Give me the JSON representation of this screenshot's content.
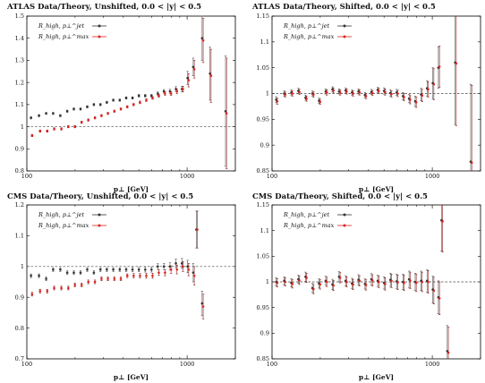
{
  "figure_colors": {
    "jet": "#333333",
    "max": "#e0231e",
    "errbar": "#8b1a1a",
    "ref": "#444444"
  },
  "chart_data": [
    {
      "type": "scatter",
      "title": "ATLAS Data/Theory, Unshifted, 0.0 < |y| < 0.5",
      "xlabel": "p⊥ [GeV]",
      "xscale": "log",
      "xlim": [
        100,
        2000
      ],
      "ylim": [
        0.8,
        1.5
      ],
      "yticks": [
        0.8,
        0.9,
        1.0,
        1.1,
        1.2,
        1.3,
        1.4,
        1.5
      ],
      "ytick_labels": [
        "0.8",
        "0.9",
        "1",
        "1.1",
        "1.2",
        "1.3",
        "1.4",
        "1.5"
      ],
      "xticks": [
        100,
        1000
      ],
      "xtick_labels": [
        "100",
        "1000"
      ],
      "reference_line": 1.0,
      "legend_position": "top-left",
      "legend_entries": [
        "R_high, p⊥^jet",
        "R_high, p⊥^max"
      ],
      "series": [
        {
          "name": "R_high, p⊥^jet",
          "color": "#333333",
          "x": [
            107,
            120,
            133,
            147,
            163,
            180,
            198,
            218,
            240,
            264,
            290,
            318,
            349,
            383,
            420,
            460,
            504,
            552,
            604,
            661,
            722,
            788,
            858,
            935,
            1015,
            1100,
            1250,
            1400,
            1750
          ],
          "y": [
            1.04,
            1.05,
            1.06,
            1.06,
            1.05,
            1.07,
            1.08,
            1.08,
            1.09,
            1.1,
            1.1,
            1.11,
            1.12,
            1.12,
            1.13,
            1.13,
            1.14,
            1.14,
            1.14,
            1.15,
            1.16,
            1.16,
            1.17,
            1.17,
            1.22,
            1.27,
            1.4,
            1.24,
            1.07
          ],
          "err": [
            0.005,
            0.005,
            0.005,
            0.005,
            0.005,
            0.005,
            0.005,
            0.005,
            0.005,
            0.005,
            0.005,
            0.005,
            0.005,
            0.005,
            0.005,
            0.005,
            0.006,
            0.006,
            0.006,
            0.007,
            0.008,
            0.009,
            0.011,
            0.013,
            0.03,
            0.04,
            0.1,
            0.12,
            0.25
          ]
        },
        {
          "name": "R_high, p⊥^max",
          "color": "#e0231e",
          "x": [
            107,
            120,
            133,
            147,
            163,
            180,
            198,
            218,
            240,
            264,
            290,
            318,
            349,
            383,
            420,
            460,
            504,
            552,
            604,
            661,
            722,
            788,
            858,
            935,
            1015,
            1100,
            1250,
            1400,
            1750
          ],
          "y": [
            0.96,
            0.98,
            0.98,
            0.99,
            0.99,
            1.0,
            1.0,
            1.02,
            1.03,
            1.04,
            1.05,
            1.06,
            1.07,
            1.08,
            1.09,
            1.1,
            1.11,
            1.12,
            1.13,
            1.14,
            1.15,
            1.15,
            1.16,
            1.17,
            1.21,
            1.26,
            1.39,
            1.23,
            1.06
          ],
          "err": [
            0.005,
            0.005,
            0.005,
            0.005,
            0.005,
            0.005,
            0.005,
            0.005,
            0.005,
            0.005,
            0.005,
            0.005,
            0.005,
            0.005,
            0.005,
            0.005,
            0.006,
            0.006,
            0.006,
            0.007,
            0.008,
            0.009,
            0.011,
            0.013,
            0.03,
            0.04,
            0.1,
            0.12,
            0.25
          ]
        }
      ]
    },
    {
      "type": "scatter",
      "title": "ATLAS Data/Theory, Shifted, 0.0 < |y| < 0.5",
      "xlabel": "p⊥ [GeV]",
      "xscale": "log",
      "xlim": [
        100,
        2000
      ],
      "ylim": [
        0.85,
        1.15
      ],
      "yticks": [
        0.85,
        0.9,
        0.95,
        1.0,
        1.05,
        1.1,
        1.15
      ],
      "ytick_labels": [
        "0.85",
        "0.9",
        "0.95",
        "1",
        "1.05",
        "1.1",
        "1.15"
      ],
      "xticks": [
        100,
        1000
      ],
      "xtick_labels": [
        "100",
        "1000"
      ],
      "reference_line": 1.0,
      "legend_position": "top-left",
      "legend_entries": [
        "R_high, p⊥^jet",
        "R_high, p⊥^max"
      ],
      "series": [
        {
          "name": "R_high, p⊥^jet",
          "color": "#333333",
          "x": [
            107,
            120,
            133,
            147,
            163,
            180,
            198,
            218,
            240,
            264,
            290,
            318,
            349,
            383,
            420,
            460,
            504,
            552,
            604,
            661,
            722,
            788,
            858,
            935,
            1015,
            1100,
            1400,
            1750
          ],
          "y": [
            0.988,
            1.0,
            1.002,
            1.005,
            0.992,
            1.0,
            0.986,
            1.004,
            1.008,
            1.004,
            1.006,
            1.002,
            1.004,
            0.997,
            1.003,
            1.007,
            1.005,
            1.001,
            1.002,
            0.995,
            0.99,
            0.985,
            0.998,
            1.01,
            1.02,
            1.05,
            1.06,
            0.868
          ],
          "err": [
            0.006,
            0.005,
            0.005,
            0.005,
            0.005,
            0.005,
            0.005,
            0.005,
            0.005,
            0.005,
            0.005,
            0.005,
            0.005,
            0.005,
            0.005,
            0.005,
            0.006,
            0.006,
            0.006,
            0.007,
            0.008,
            0.01,
            0.012,
            0.015,
            0.03,
            0.04,
            0.12,
            0.15
          ]
        },
        {
          "name": "R_high, p⊥^max",
          "color": "#e0231e",
          "x": [
            107,
            120,
            133,
            147,
            163,
            180,
            198,
            218,
            240,
            264,
            290,
            318,
            349,
            383,
            420,
            460,
            504,
            552,
            604,
            661,
            722,
            788,
            858,
            935,
            1015,
            1100,
            1400,
            1750
          ],
          "y": [
            0.985,
            0.998,
            1.0,
            1.003,
            0.99,
            0.998,
            0.984,
            1.002,
            1.006,
            1.002,
            1.004,
            1.0,
            1.002,
            0.995,
            1.001,
            1.005,
            1.003,
            0.999,
            1.0,
            0.993,
            0.988,
            0.983,
            0.996,
            1.008,
            1.018,
            1.052,
            1.058,
            0.866
          ],
          "err": [
            0.006,
            0.005,
            0.005,
            0.005,
            0.005,
            0.005,
            0.005,
            0.005,
            0.005,
            0.005,
            0.005,
            0.005,
            0.005,
            0.005,
            0.005,
            0.005,
            0.006,
            0.006,
            0.006,
            0.007,
            0.008,
            0.01,
            0.012,
            0.015,
            0.03,
            0.04,
            0.12,
            0.15
          ]
        }
      ]
    },
    {
      "type": "scatter",
      "title": "CMS Data/Theory, Unshifted, 0.0 < |y| < 0.5",
      "xlabel": "p⊥ [GeV]",
      "xscale": "log",
      "xlim": [
        100,
        2000
      ],
      "ylim": [
        0.7,
        1.2
      ],
      "yticks": [
        0.7,
        0.8,
        0.9,
        1.0,
        1.1,
        1.2
      ],
      "ytick_labels": [
        "0.7",
        "0.8",
        "0.9",
        "1",
        "1.1",
        "1.2"
      ],
      "xticks": [
        100,
        1000
      ],
      "xtick_labels": [
        "100",
        "1000"
      ],
      "reference_line": 1.0,
      "legend_position": "top-left",
      "legend_entries": [
        "R_high, p⊥^jet",
        "R_high, p⊥^max"
      ],
      "series": [
        {
          "name": "R_high, p⊥^jet",
          "color": "#333333",
          "x": [
            107,
            120,
            133,
            147,
            163,
            180,
            198,
            218,
            240,
            264,
            290,
            318,
            349,
            383,
            420,
            460,
            504,
            552,
            604,
            661,
            722,
            788,
            858,
            935,
            1015,
            1100,
            1150,
            1250
          ],
          "y": [
            0.97,
            0.97,
            0.96,
            0.99,
            0.99,
            0.98,
            0.98,
            0.98,
            0.99,
            0.98,
            0.99,
            0.99,
            0.99,
            0.99,
            0.99,
            0.99,
            0.99,
            0.99,
            0.99,
            1.0,
            1.0,
            1.0,
            1.01,
            1.01,
            1.0,
            0.98,
            1.12,
            0.88
          ],
          "err": [
            0.006,
            0.006,
            0.006,
            0.006,
            0.006,
            0.006,
            0.006,
            0.006,
            0.006,
            0.006,
            0.006,
            0.006,
            0.006,
            0.006,
            0.006,
            0.007,
            0.007,
            0.008,
            0.008,
            0.009,
            0.01,
            0.012,
            0.014,
            0.016,
            0.02,
            0.03,
            0.06,
            0.04
          ]
        },
        {
          "name": "R_high, p⊥^max",
          "color": "#e0231e",
          "x": [
            107,
            120,
            133,
            147,
            163,
            180,
            198,
            218,
            240,
            264,
            290,
            318,
            349,
            383,
            420,
            460,
            504,
            552,
            604,
            661,
            722,
            788,
            858,
            935,
            1015,
            1100,
            1150,
            1250
          ],
          "y": [
            0.91,
            0.92,
            0.92,
            0.93,
            0.93,
            0.93,
            0.94,
            0.94,
            0.95,
            0.95,
            0.96,
            0.96,
            0.96,
            0.96,
            0.97,
            0.97,
            0.97,
            0.97,
            0.97,
            0.98,
            0.98,
            0.99,
            0.99,
            1.0,
            0.99,
            0.97,
            1.12,
            0.87
          ],
          "err": [
            0.006,
            0.006,
            0.006,
            0.006,
            0.006,
            0.006,
            0.006,
            0.006,
            0.006,
            0.006,
            0.006,
            0.006,
            0.006,
            0.006,
            0.006,
            0.007,
            0.007,
            0.008,
            0.008,
            0.009,
            0.01,
            0.012,
            0.014,
            0.016,
            0.02,
            0.03,
            0.06,
            0.04
          ]
        }
      ]
    },
    {
      "type": "scatter",
      "title": "CMS Data/Theory, Shifted, 0.0 < |y| < 0.5",
      "xlabel": "p⊥ [GeV]",
      "xscale": "log",
      "xlim": [
        100,
        2000
      ],
      "ylim": [
        0.85,
        1.15
      ],
      "yticks": [
        0.85,
        0.9,
        0.95,
        1.0,
        1.05,
        1.1,
        1.15
      ],
      "ytick_labels": [
        "0.85",
        "0.9",
        "0.95",
        "1",
        "1.05",
        "1.1",
        "1.15"
      ],
      "xticks": [
        100,
        1000
      ],
      "xtick_labels": [
        "100",
        "1000"
      ],
      "reference_line": 1.0,
      "legend_position": "top-left",
      "legend_entries": [
        "R_high, p⊥^jet",
        "R_high, p⊥^max"
      ],
      "series": [
        {
          "name": "R_high, p⊥^jet",
          "color": "#333333",
          "x": [
            107,
            120,
            133,
            147,
            163,
            180,
            198,
            218,
            240,
            264,
            290,
            318,
            349,
            383,
            420,
            460,
            504,
            552,
            604,
            661,
            722,
            788,
            858,
            935,
            1015,
            1100,
            1150,
            1250
          ],
          "y": [
            1.0,
            1.002,
            0.998,
            1.005,
            1.01,
            0.988,
            0.997,
            1.002,
            0.995,
            1.01,
            1.002,
            0.997,
            1.004,
            0.996,
            1.005,
            1.002,
            0.998,
            1.004,
            1.001,
            1.0,
            1.005,
            1.0,
            1.002,
            1.002,
            0.985,
            0.97,
            1.12,
            0.865
          ],
          "err": [
            0.008,
            0.008,
            0.008,
            0.008,
            0.009,
            0.009,
            0.009,
            0.009,
            0.01,
            0.01,
            0.01,
            0.01,
            0.01,
            0.01,
            0.011,
            0.011,
            0.012,
            0.013,
            0.014,
            0.015,
            0.016,
            0.017,
            0.019,
            0.022,
            0.026,
            0.032,
            0.06,
            0.05
          ]
        },
        {
          "name": "R_high, p⊥^max",
          "color": "#e0231e",
          "x": [
            107,
            120,
            133,
            147,
            163,
            180,
            198,
            218,
            240,
            264,
            290,
            318,
            349,
            383,
            420,
            460,
            504,
            552,
            604,
            661,
            722,
            788,
            858,
            935,
            1015,
            1100,
            1150,
            1250
          ],
          "y": [
            0.998,
            1.0,
            0.996,
            1.003,
            1.008,
            0.986,
            0.995,
            1.0,
            0.993,
            1.008,
            1.0,
            0.995,
            1.002,
            0.994,
            1.003,
            1.0,
            0.996,
            1.002,
            0.999,
            0.998,
            1.003,
            0.998,
            1.0,
            1.0,
            0.983,
            0.968,
            1.118,
            0.862
          ],
          "err": [
            0.008,
            0.008,
            0.008,
            0.008,
            0.009,
            0.009,
            0.009,
            0.009,
            0.01,
            0.01,
            0.01,
            0.01,
            0.01,
            0.01,
            0.011,
            0.011,
            0.012,
            0.013,
            0.014,
            0.015,
            0.016,
            0.017,
            0.019,
            0.022,
            0.026,
            0.032,
            0.06,
            0.05
          ]
        }
      ]
    }
  ]
}
